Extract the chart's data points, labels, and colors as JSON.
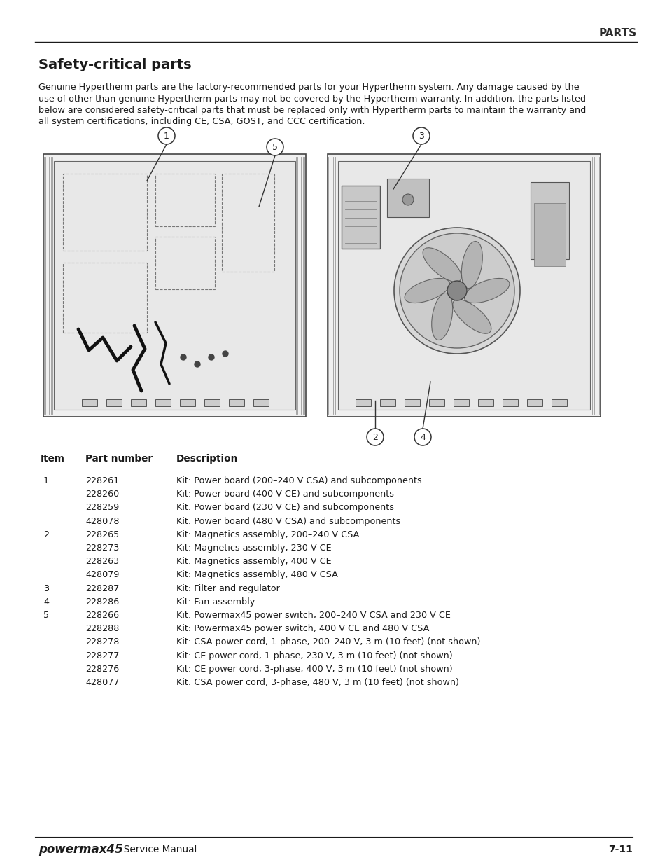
{
  "header_text": "PARTS",
  "title": "Safety-critical parts",
  "intro_text": "Genuine Hypertherm parts are the factory-recommended parts for your Hypertherm system. Any damage caused by the use of other than genuine Hypertherm parts may not be covered by the Hypertherm warranty. In addition, the parts listed below are considered safety-critical parts that must be replaced only with Hypertherm parts to maintain the warranty and all system certifications, including CE, CSA, GOST, and CCC certification.",
  "intro_lines": [
    "Genuine Hypertherm parts are the factory-recommended parts for your Hypertherm system. Any damage caused by the",
    "use of other than genuine Hypertherm parts may not be covered by the Hypertherm warranty. In addition, the parts listed",
    "below are considered safety-critical parts that must be replaced only with Hypertherm parts to maintain the warranty and",
    "all system certifications, including CE, CSA, GOST, and CCC certification."
  ],
  "table_headers": [
    "Item",
    "Part number",
    "Description"
  ],
  "table_rows": [
    [
      "1",
      "228261",
      "Kit: Power board (200–240 V CSA) and subcomponents"
    ],
    [
      "",
      "228260",
      "Kit: Power board (400 V CE) and subcomponents"
    ],
    [
      "",
      "228259",
      "Kit: Power board (230 V CE) and subcomponents"
    ],
    [
      "",
      "428078",
      "Kit: Power board (480 V CSA) and subcomponents"
    ],
    [
      "2",
      "228265",
      "Kit: Magnetics assembly, 200–240 V CSA"
    ],
    [
      "",
      "228273",
      "Kit: Magnetics assembly, 230 V CE"
    ],
    [
      "",
      "228263",
      "Kit: Magnetics assembly, 400 V CE"
    ],
    [
      "",
      "428079",
      "Kit: Magnetics assembly, 480 V CSA"
    ],
    [
      "3",
      "228287",
      "Kit: Filter and regulator"
    ],
    [
      "4",
      "228286",
      "Kit: Fan assembly"
    ],
    [
      "5",
      "228266",
      "Kit: Powermax45 power switch, 200–240 V CSA and 230 V CE"
    ],
    [
      "",
      "228288",
      "Kit: Powermax45 power switch, 400 V CE and 480 V CSA"
    ],
    [
      "",
      "228278",
      "Kit: CSA power cord, 1-phase, 200–240 V, 3 m (10 feet) (not shown)"
    ],
    [
      "",
      "228277",
      "Kit: CE power cord, 1-phase, 230 V, 3 m (10 feet) (not shown)"
    ],
    [
      "",
      "228276",
      "Kit: CE power cord, 3-phase, 400 V, 3 m (10 feet) (not shown)"
    ],
    [
      "",
      "428077",
      "Kit: CSA power cord, 3-phase, 480 V, 3 m (10 feet) (not shown)"
    ]
  ],
  "footer_brand": "powermax45",
  "footer_service": "  Service Manual",
  "footer_page": "7-11",
  "bg_color": "#ffffff",
  "text_color": "#1a1a1a",
  "header_color": "#2b2b2b"
}
